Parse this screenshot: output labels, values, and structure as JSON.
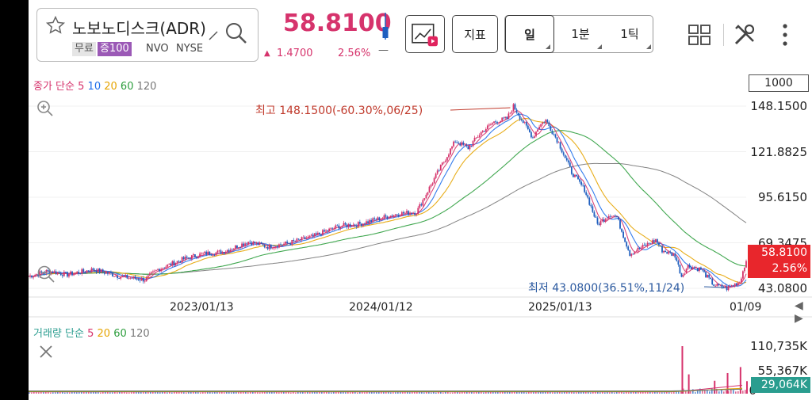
{
  "stock": {
    "name": "노보노디스크(ADR)",
    "tag_free": "무료",
    "tag_margin": "증100",
    "code": "NVO",
    "market": "NYSE",
    "price": "58.8100",
    "change_amount": "1.4700",
    "change_percent": "2.56%",
    "change_extra": "—",
    "colors": {
      "up": "#d6336c",
      "down": "#1f5fbf"
    }
  },
  "toolbar": {
    "chart_type_icon": "line-chart-play-icon",
    "indicator_label": "지표",
    "periods": [
      "일",
      "1분",
      "1틱"
    ],
    "selected_period": "일"
  },
  "indicators": {
    "price_ma": {
      "prefix": "종가 단순",
      "periods": [
        "5",
        "10",
        "20",
        "60",
        "120"
      ],
      "colors": [
        "#d6336c",
        "#1f6feb",
        "#e6a400",
        "#2e9e3e",
        "#777777"
      ]
    },
    "volume_ma": {
      "prefix": "거래량 단순",
      "periods": [
        "5",
        "20",
        "60",
        "120"
      ],
      "colors": [
        "#d6336c",
        "#e6a400",
        "#2e9e3e",
        "#777777"
      ]
    }
  },
  "scale_box": "1000",
  "chart_data": {
    "type": "line",
    "y_ticks": [
      "148.1500",
      "121.8825",
      "95.6150",
      "69.3475",
      "43.0800"
    ],
    "ylim": [
      43.08,
      148.15
    ],
    "x_ticks": [
      "2023/01/13",
      "2024/01/12",
      "2025/01/13",
      "01/09"
    ],
    "current_price": "58.8100",
    "current_change": "2.56%",
    "annotations": {
      "high": "최고 148.1500(-60.30%,06/25)",
      "low": "최저 43.0800(36.51%,11/24)"
    },
    "close_series": [
      {
        "t": 0,
        "v": 50
      },
      {
        "t": 3,
        "v": 53
      },
      {
        "t": 6,
        "v": 51
      },
      {
        "t": 10,
        "v": 54
      },
      {
        "t": 14,
        "v": 50
      },
      {
        "t": 18,
        "v": 48
      },
      {
        "t": 20,
        "v": 54
      },
      {
        "t": 24,
        "v": 60
      },
      {
        "t": 27,
        "v": 63
      },
      {
        "t": 30,
        "v": 64
      },
      {
        "t": 34,
        "v": 70
      },
      {
        "t": 37,
        "v": 67
      },
      {
        "t": 40,
        "v": 69
      },
      {
        "t": 44,
        "v": 73
      },
      {
        "t": 48,
        "v": 79
      },
      {
        "t": 51,
        "v": 80
      },
      {
        "t": 54,
        "v": 83
      },
      {
        "t": 57,
        "v": 86
      },
      {
        "t": 60,
        "v": 87
      },
      {
        "t": 63,
        "v": 108
      },
      {
        "t": 66,
        "v": 128
      },
      {
        "t": 68,
        "v": 124
      },
      {
        "t": 70,
        "v": 133
      },
      {
        "t": 72,
        "v": 139
      },
      {
        "t": 74,
        "v": 141
      },
      {
        "t": 75,
        "v": 148.15
      },
      {
        "t": 76,
        "v": 142
      },
      {
        "t": 78,
        "v": 130
      },
      {
        "t": 79,
        "v": 137
      },
      {
        "t": 80,
        "v": 140
      },
      {
        "t": 82,
        "v": 127
      },
      {
        "t": 84,
        "v": 110
      },
      {
        "t": 86,
        "v": 100
      },
      {
        "t": 88,
        "v": 80
      },
      {
        "t": 90,
        "v": 86
      },
      {
        "t": 91,
        "v": 84
      },
      {
        "t": 93,
        "v": 63
      },
      {
        "t": 95,
        "v": 67
      },
      {
        "t": 97,
        "v": 71
      },
      {
        "t": 98,
        "v": 65
      },
      {
        "t": 100,
        "v": 62
      },
      {
        "t": 101,
        "v": 50
      },
      {
        "t": 102,
        "v": 56
      },
      {
        "t": 104,
        "v": 54
      },
      {
        "t": 106,
        "v": 45
      },
      {
        "t": 108,
        "v": 43.08
      },
      {
        "t": 110,
        "v": 47
      },
      {
        "t": 111,
        "v": 58.81
      }
    ],
    "volume": {
      "y_ticks": [
        "110,735K",
        "55,367K",
        "0"
      ],
      "current": "29,064K",
      "spikes": [
        {
          "t": 101,
          "v": 110735
        },
        {
          "t": 102,
          "v": 45000
        },
        {
          "t": 106,
          "v": 30000
        },
        {
          "t": 108,
          "v": 48000
        },
        {
          "t": 110,
          "v": 62000
        },
        {
          "t": 111,
          "v": 29064
        }
      ]
    }
  }
}
